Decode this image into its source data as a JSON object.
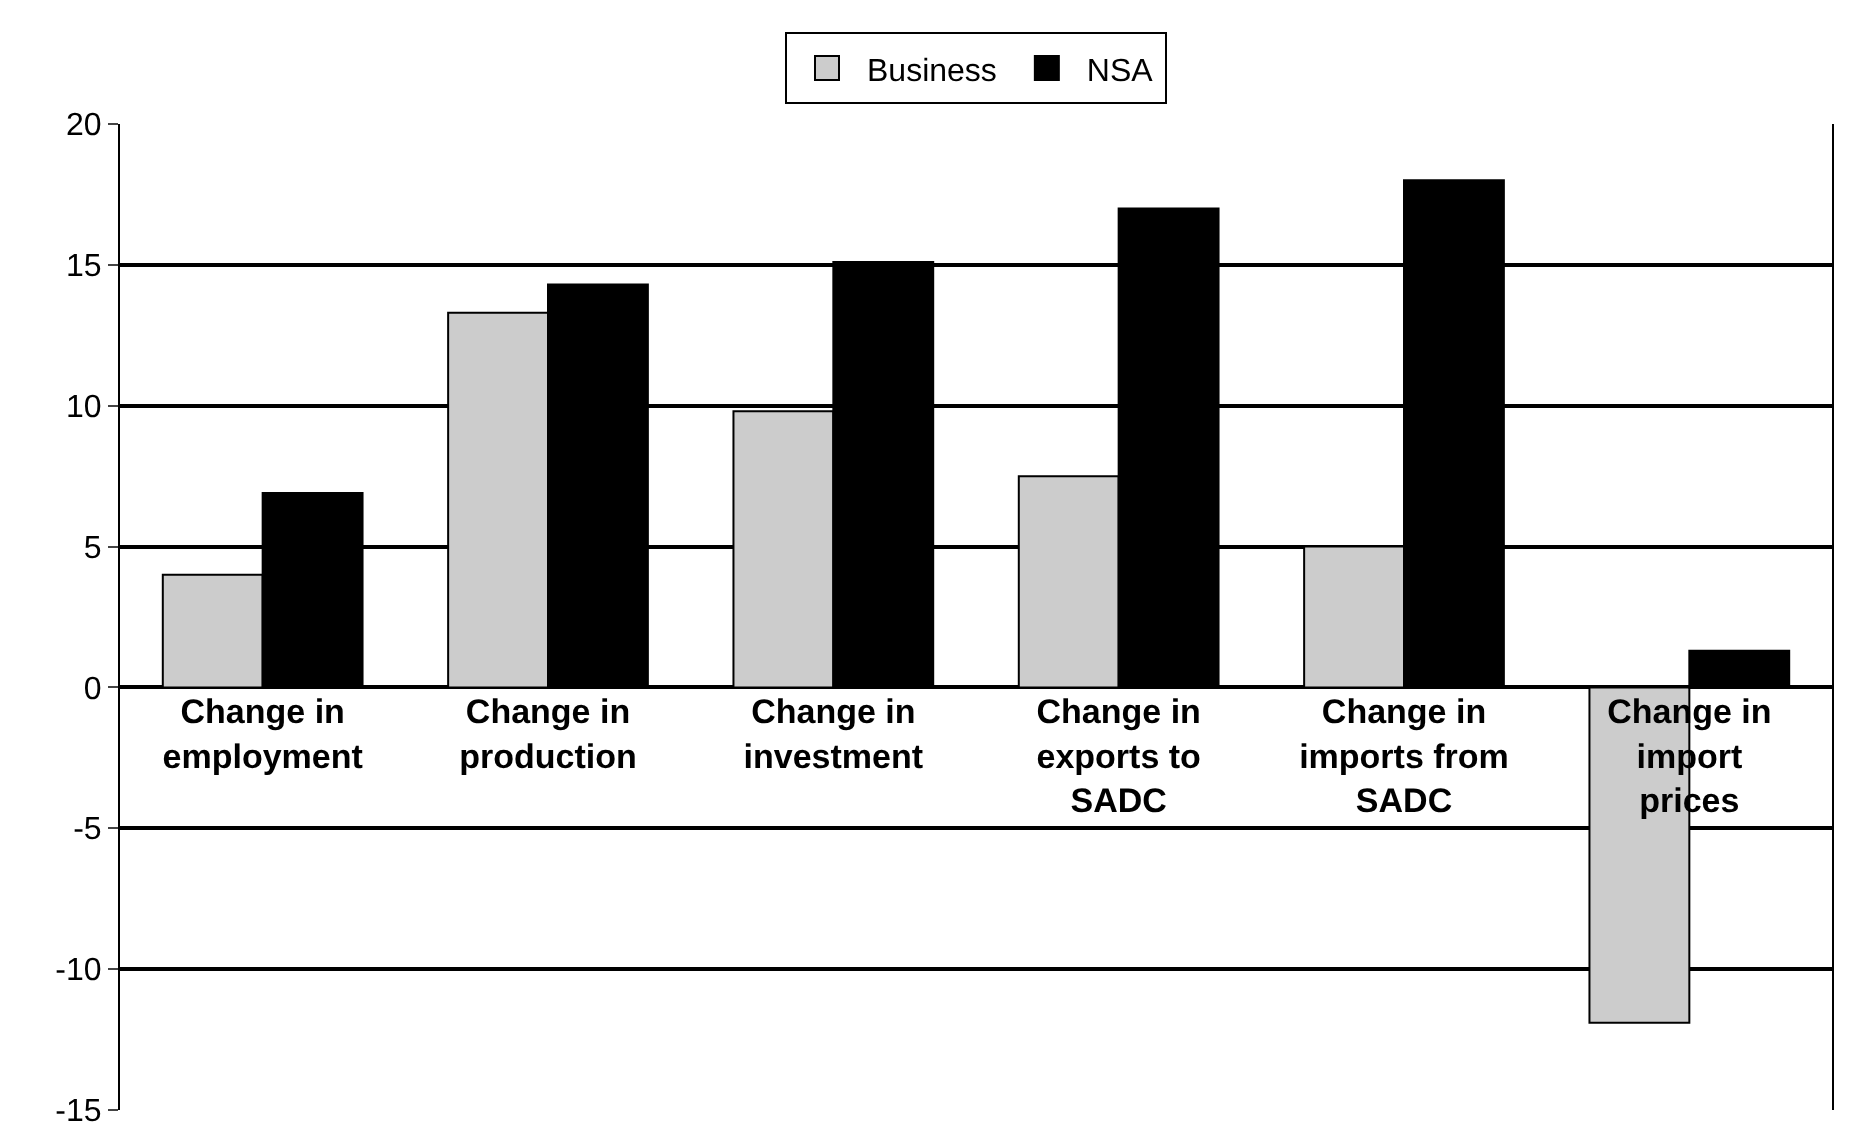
{
  "chart_data": {
    "type": "bar",
    "categories": [
      "Change in employment",
      "Change in production",
      "Change in investment",
      "Change in exports to SADC",
      "Change in imports from SADC",
      "Change in import prices"
    ],
    "series": [
      {
        "name": "Business",
        "color": "#cccccc",
        "values": [
          4,
          13.3,
          9.8,
          7.5,
          5,
          -11.9
        ]
      },
      {
        "name": "NSA",
        "color": "#000000",
        "values": [
          6.9,
          14.3,
          15.1,
          17,
          18,
          1.3
        ]
      }
    ],
    "ylim": [
      -15,
      20
    ],
    "yticks": [
      -15,
      -10,
      -5,
      0,
      5,
      10,
      15,
      20
    ],
    "grid": "y",
    "legend": "top"
  }
}
